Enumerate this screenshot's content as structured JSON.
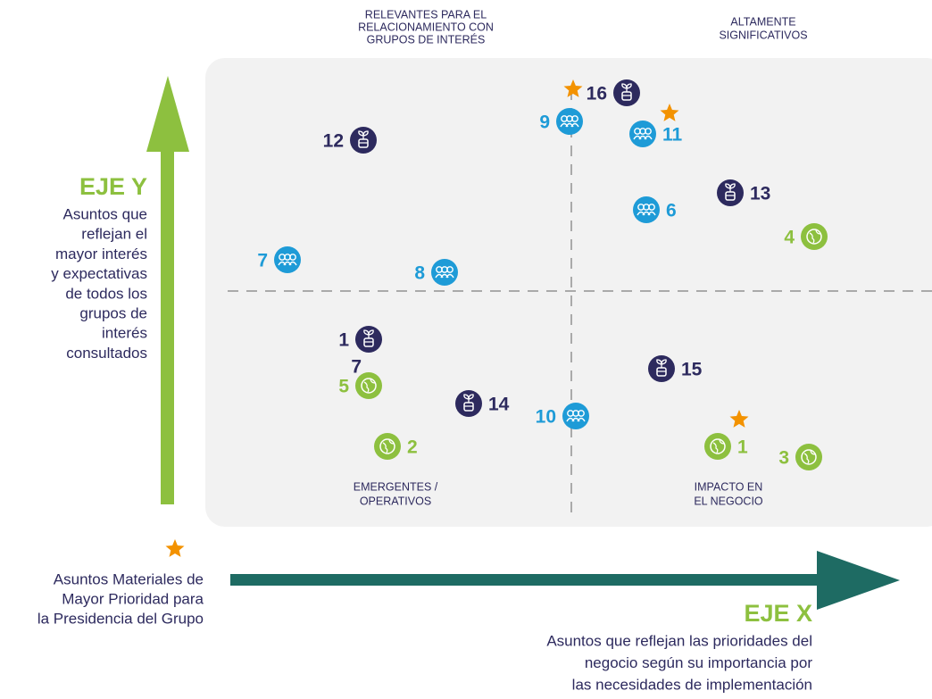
{
  "quadrants": {
    "top_left": [
      "RELEVANTES PARA EL",
      "RELACIONAMIENTO CON",
      "GRUPOS DE INTERÉS"
    ],
    "top_right": [
      "ALTAMENTE",
      "SIGNIFICATIVOS"
    ],
    "bottom_left": [
      "EMERGENTES /",
      "OPERATIVOS"
    ],
    "bottom_right": [
      "IMPACTO EN",
      "EL NEGOCIO"
    ]
  },
  "axis_y": {
    "title": "EJE Y",
    "description": [
      "Asuntos que",
      "reflejan el",
      "mayor interés",
      "y expectativas",
      "de todos los",
      "grupos de",
      "interés",
      "consultados"
    ],
    "color": "#8dc03f"
  },
  "axis_x": {
    "title": "EJE X",
    "description": [
      "Asuntos que reflejan las prioridades del",
      "negocio según su importancia por",
      "las necesidades de implementación"
    ],
    "color": "#1e6b63"
  },
  "legend": {
    "star_color": "#f39200",
    "text": [
      "Asuntos Materiales de",
      "Mayor Prioridad para",
      "la Presidencia del Grupo"
    ]
  },
  "nodes": [
    {
      "label": "16",
      "color": "#2d2a5e",
      "star": true
    },
    {
      "label": "9",
      "color": "#1e9bd7"
    },
    {
      "label": "11",
      "color": "#1e9bd7",
      "star": true
    },
    {
      "label": "12",
      "color": "#2d2a5e"
    },
    {
      "label": "13",
      "color": "#2d2a5e"
    },
    {
      "label": "6",
      "color": "#1e9bd7"
    },
    {
      "label": "4",
      "color": "#8dc03f"
    },
    {
      "label": "7",
      "color": "#1e9bd7"
    },
    {
      "label": "8",
      "color": "#1e9bd7"
    },
    {
      "label": "1",
      "color": "#2d2a5e"
    },
    {
      "label": "7",
      "color": "#2d2a5e",
      "icon": false
    },
    {
      "label": "5",
      "color": "#8dc03f"
    },
    {
      "label": "14",
      "color": "#2d2a5e"
    },
    {
      "label": "15",
      "color": "#2d2a5e"
    },
    {
      "label": "10",
      "color": "#1e9bd7"
    },
    {
      "label": "2",
      "color": "#8dc03f"
    },
    {
      "label": "1",
      "color": "#8dc03f",
      "star": true
    },
    {
      "label": "3",
      "color": "#8dc03f"
    }
  ]
}
